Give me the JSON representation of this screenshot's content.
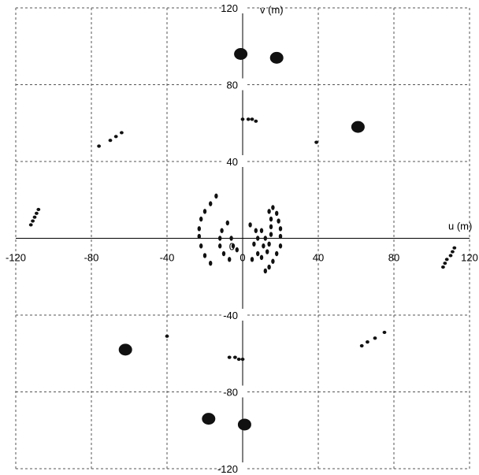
{
  "chart_data": {
    "type": "scatter",
    "title": "",
    "xlabel": "u (m)",
    "ylabel": "v (m)",
    "xlim": [
      -120,
      120
    ],
    "ylim": [
      -120,
      120
    ],
    "xticks": [
      "-120",
      "-80",
      "-40",
      "0",
      "40",
      "80",
      "120"
    ],
    "yticks": [
      "120",
      "80",
      "40",
      "0",
      "-40",
      "-80",
      "-120"
    ],
    "grid": true,
    "series": [
      {
        "marker": "large-dot",
        "points": [
          [
            -1,
            96
          ],
          [
            18,
            94
          ],
          [
            61,
            58
          ],
          [
            -62,
            -58
          ],
          [
            -18,
            -94
          ],
          [
            1,
            -97
          ]
        ]
      },
      {
        "marker": "small-dot",
        "points": [
          [
            -112,
            7
          ],
          [
            -111,
            9
          ],
          [
            -110,
            11
          ],
          [
            -109,
            13
          ],
          [
            -108,
            15
          ],
          [
            -76,
            48
          ],
          [
            -70,
            51
          ],
          [
            -67,
            53
          ],
          [
            -64,
            55
          ],
          [
            0,
            62
          ],
          [
            3,
            62
          ],
          [
            5,
            62
          ],
          [
            7,
            61
          ],
          [
            39,
            50
          ],
          [
            -40,
            -51
          ],
          [
            -7,
            -62
          ],
          [
            -4,
            -62
          ],
          [
            -2,
            -63
          ],
          [
            0,
            -63
          ],
          [
            63,
            -56
          ],
          [
            66,
            -54
          ],
          [
            70,
            -52
          ],
          [
            75,
            -49
          ],
          [
            106,
            -15
          ],
          [
            107,
            -13
          ],
          [
            108,
            -11
          ],
          [
            110,
            -9
          ],
          [
            111,
            -7
          ],
          [
            112,
            -5
          ]
        ]
      },
      {
        "marker": "track-dot",
        "points": [
          [
            -17,
            -13
          ],
          [
            -20,
            -9
          ],
          [
            -22,
            -4
          ],
          [
            -23,
            1
          ],
          [
            -23,
            5
          ],
          [
            -22,
            10
          ],
          [
            -20,
            14
          ],
          [
            -17,
            18
          ],
          [
            -14,
            22
          ],
          [
            -8,
            8
          ],
          [
            -11,
            4
          ],
          [
            -12,
            0
          ],
          [
            -12,
            -4
          ],
          [
            -10,
            -8
          ],
          [
            -7,
            -11
          ],
          [
            -6,
            0
          ],
          [
            -5,
            -4
          ],
          [
            -3,
            -6
          ],
          [
            4,
            7
          ],
          [
            7,
            4
          ],
          [
            8,
            0
          ],
          [
            6,
            -3
          ],
          [
            10,
            4
          ],
          [
            12,
            0
          ],
          [
            11,
            -4
          ],
          [
            8,
            -8
          ],
          [
            5,
            -11
          ],
          [
            14,
            14
          ],
          [
            15,
            10
          ],
          [
            15,
            6
          ],
          [
            15,
            2
          ],
          [
            14,
            -3
          ],
          [
            13,
            -7
          ],
          [
            10,
            -10
          ],
          [
            16,
            16
          ],
          [
            18,
            13
          ],
          [
            19,
            9
          ],
          [
            20,
            5
          ],
          [
            20,
            1
          ],
          [
            20,
            -4
          ],
          [
            18,
            -8
          ],
          [
            16,
            -12
          ],
          [
            14,
            -15
          ],
          [
            12,
            -17
          ]
        ]
      }
    ]
  }
}
